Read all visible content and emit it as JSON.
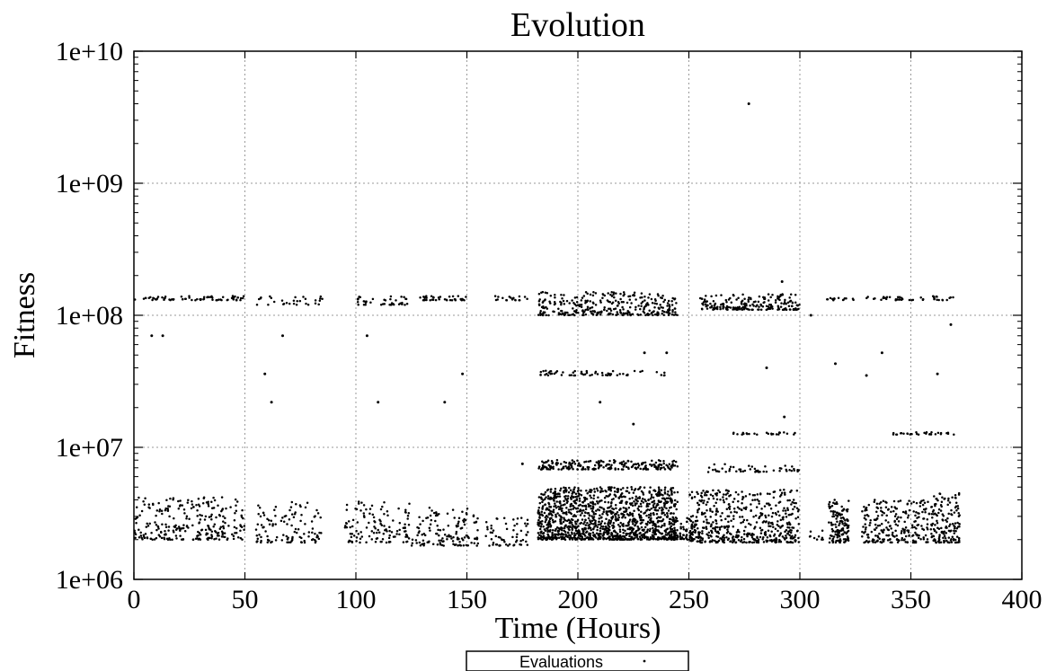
{
  "chart_data": {
    "type": "scatter",
    "title": "Evolution",
    "xlabel": "Time (Hours)",
    "ylabel": "Fitness",
    "xlim": [
      0,
      400
    ],
    "ylim": [
      1000000,
      10000000000
    ],
    "yscale": "log",
    "grid": true,
    "legend_position": "bottom-center",
    "x_ticks": [
      0,
      50,
      100,
      150,
      200,
      250,
      300,
      350,
      400
    ],
    "x_tick_labels": [
      "0",
      "50",
      "100",
      "150",
      "200",
      "250",
      "300",
      "350",
      "400"
    ],
    "y_ticks": [
      1000000,
      10000000,
      100000000,
      1000000000,
      10000000000
    ],
    "y_tick_labels": [
      "1e+06",
      "1e+07",
      "1e+08",
      "1e+09",
      "1e+10"
    ],
    "series": [
      {
        "name": "Evaluations",
        "marker": "dot",
        "color": "#000000",
        "clusters": [
          {
            "x_range": [
              0,
              50
            ],
            "n": 260,
            "y_range": [
              2000000,
              4200000
            ]
          },
          {
            "x_range": [
              0,
              50
            ],
            "n": 70,
            "y_range": [
              130000000,
              140000000
            ]
          },
          {
            "x_range": [
              55,
              85
            ],
            "n": 110,
            "y_range": [
              1900000,
              4000000
            ]
          },
          {
            "x_range": [
              55,
              85
            ],
            "n": 30,
            "y_range": [
              120000000,
              140000000
            ]
          },
          {
            "x_range": [
              95,
              125
            ],
            "n": 120,
            "y_range": [
              1900000,
              4000000
            ]
          },
          {
            "x_range": [
              100,
              125
            ],
            "n": 40,
            "y_range": [
              120000000,
              140000000
            ]
          },
          {
            "x_range": [
              125,
              155
            ],
            "n": 130,
            "y_range": [
              1800000,
              3500000
            ]
          },
          {
            "x_range": [
              128,
              150
            ],
            "n": 40,
            "y_range": [
              130000000,
              140000000
            ]
          },
          {
            "x_range": [
              158,
              178
            ],
            "n": 60,
            "y_range": [
              1800000,
              3000000
            ]
          },
          {
            "x_range": [
              162,
              178
            ],
            "n": 20,
            "y_range": [
              130000000,
              140000000
            ]
          },
          {
            "x_range": [
              182,
              245
            ],
            "n": 1300,
            "y_range": [
              2000000,
              5000000
            ]
          },
          {
            "x_range": [
              182,
              245
            ],
            "n": 220,
            "y_range": [
              6800000,
              8000000
            ]
          },
          {
            "x_range": [
              182,
              245
            ],
            "n": 320,
            "y_range": [
              100000000,
              150000000
            ]
          },
          {
            "x_range": [
              183,
              240
            ],
            "n": 60,
            "y_range": [
              35000000,
              38000000
            ]
          },
          {
            "x_range": [
              246,
              255
            ],
            "n": 60,
            "y_range": [
              2000000,
              3000000
            ]
          },
          {
            "x_range": [
              250,
              300
            ],
            "n": 500,
            "y_range": [
              1900000,
              4800000
            ]
          },
          {
            "x_range": [
              255,
              300
            ],
            "n": 200,
            "y_range": [
              110000000,
              145000000
            ]
          },
          {
            "x_range": [
              258,
              300
            ],
            "n": 50,
            "y_range": [
              6500000,
              7500000
            ]
          },
          {
            "x_range": [
              270,
              300
            ],
            "n": 25,
            "y_range": [
              12500000,
              13000000
            ]
          },
          {
            "x_range": [
              303,
              312
            ],
            "n": 10,
            "y_range": [
              2000000,
              2500000
            ]
          },
          {
            "x_range": [
              313,
              322
            ],
            "n": 130,
            "y_range": [
              1900000,
              4000000
            ]
          },
          {
            "x_range": [
              312,
              325
            ],
            "n": 15,
            "y_range": [
              130000000,
              138000000
            ]
          },
          {
            "x_range": [
              328,
              360
            ],
            "n": 250,
            "y_range": [
              1900000,
              4000000
            ]
          },
          {
            "x_range": [
              330,
              358
            ],
            "n": 30,
            "y_range": [
              130000000,
              138000000
            ]
          },
          {
            "x_range": [
              338,
              370
            ],
            "n": 30,
            "y_range": [
              12500000,
              13000000
            ]
          },
          {
            "x_range": [
              360,
              372
            ],
            "n": 140,
            "y_range": [
              1900000,
              4500000
            ]
          },
          {
            "x_range": [
              360,
              370
            ],
            "n": 15,
            "y_range": [
              130000000,
              140000000
            ]
          }
        ],
        "notable_points": [
          {
            "x": 277,
            "y": 4000000000
          },
          {
            "x": 292,
            "y": 180000000
          },
          {
            "x": 8,
            "y": 70000000
          },
          {
            "x": 13,
            "y": 70000000
          },
          {
            "x": 67,
            "y": 70000000
          },
          {
            "x": 62,
            "y": 22000000
          },
          {
            "x": 59,
            "y": 36000000
          },
          {
            "x": 110,
            "y": 22000000
          },
          {
            "x": 140,
            "y": 22000000
          },
          {
            "x": 148,
            "y": 36000000
          },
          {
            "x": 105,
            "y": 70000000
          },
          {
            "x": 230,
            "y": 52000000
          },
          {
            "x": 240,
            "y": 52000000
          },
          {
            "x": 285,
            "y": 40000000
          },
          {
            "x": 293,
            "y": 17000000
          },
          {
            "x": 316,
            "y": 43000000
          },
          {
            "x": 330,
            "y": 35000000
          },
          {
            "x": 337,
            "y": 52000000
          },
          {
            "x": 362,
            "y": 36000000
          },
          {
            "x": 368,
            "y": 85000000
          },
          {
            "x": 305,
            "y": 100000000
          },
          {
            "x": 175,
            "y": 7500000
          },
          {
            "x": 225,
            "y": 15000000
          },
          {
            "x": 210,
            "y": 22000000
          }
        ]
      }
    ]
  }
}
